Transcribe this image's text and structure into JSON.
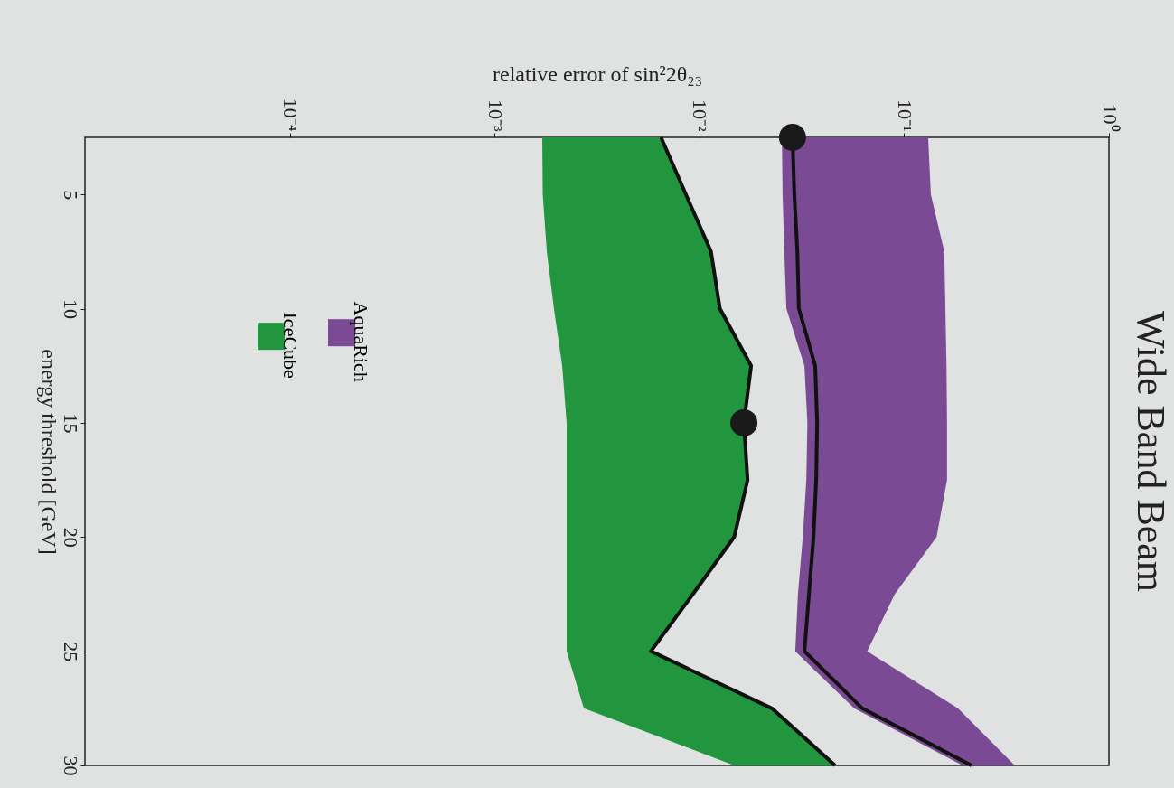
{
  "chart_data": {
    "type": "line",
    "orientation": "horizontal",
    "title": "Wide Band Beam",
    "xlabel": "relative error of sin²2θ₂₃",
    "ylabel": "energy threshold [GeV]",
    "xlim": [
      1e-05,
      1
    ],
    "xticks": [
      {
        "value": 0.0001,
        "label": "10⁻⁴"
      },
      {
        "value": 0.001,
        "label": "10⁻³"
      },
      {
        "value": 0.01,
        "label": "10⁻²"
      },
      {
        "value": 0.1,
        "label": "10⁻¹"
      },
      {
        "value": 1,
        "label": "10⁰"
      }
    ],
    "ylim": [
      30,
      2.5
    ],
    "yticks": [
      5,
      10,
      15,
      20,
      25,
      30
    ],
    "log": "x",
    "grid": false,
    "legend": "top left",
    "series": [
      {
        "name": "AquaRich",
        "color": "#7b4a94",
        "x": [
          2.5,
          5,
          7.5,
          10,
          12.5,
          15,
          17.5,
          20,
          22.5,
          25,
          27.5,
          30
        ],
        "values": [
          null,
          null,
          null,
          null,
          null,
          null,
          null,
          null,
          null,
          null,
          null,
          null
        ],
        "lower": [
          0.0253,
          0.0255,
          0.026,
          0.0266,
          0.0326,
          0.0337,
          0.0333,
          0.032,
          0.0303,
          0.0294,
          0.057,
          0.193
        ],
        "upper": [
          0.131,
          0.135,
          0.157,
          0.159,
          0.161,
          0.162,
          0.162,
          0.144,
          0.09,
          0.066,
          0.183,
          0.347
        ]
      },
      {
        "name": "IceCube",
        "color": "#21963f",
        "x": [
          2.5,
          5,
          7.5,
          10,
          12.5,
          15,
          17.5,
          20,
          22.5,
          25,
          27.5,
          30
        ],
        "values": [
          null,
          null,
          null,
          null,
          null,
          null,
          null,
          null,
          null,
          null,
          null,
          null
        ],
        "lower": [
          0.00171,
          0.00172,
          0.0018,
          0.00195,
          0.00214,
          0.00225,
          0.00225,
          0.00225,
          0.00225,
          0.00225,
          0.00273,
          0.0148
        ],
        "upper": [
          0.0065,
          0.0086,
          0.0114,
          0.0126,
          0.0179,
          0.0165,
          0.0172,
          0.0148,
          0.0093,
          0.0058,
          0.0226,
          0.046
        ]
      },
      {
        "color": "#111111",
        "x": [
          2.5,
          5,
          7.5,
          10,
          12.5,
          15,
          17.5,
          20,
          22.5,
          25,
          27.5,
          30
        ],
        "values": [
          0.0285,
          0.0291,
          0.0301,
          0.0306,
          0.0368,
          0.0376,
          0.0372,
          0.0361,
          0.0343,
          0.0326,
          0.0624,
          0.213
        ]
      },
      {
        "color": "#111111",
        "x": [
          2.5,
          5,
          7.5,
          10,
          12.5,
          15,
          17.5,
          20,
          22.5,
          25,
          27.5,
          30
        ],
        "values": [
          0.0065,
          0.0086,
          0.0114,
          0.0126,
          0.0179,
          0.0165,
          0.0172,
          0.0148,
          0.0093,
          0.0058,
          0.0226,
          0.046
        ]
      },
      {
        "type": "scatter",
        "color": "#1a1a1a",
        "x": [
          2.5,
          15
        ],
        "values": [
          0.0285,
          0.0165
        ]
      }
    ]
  }
}
